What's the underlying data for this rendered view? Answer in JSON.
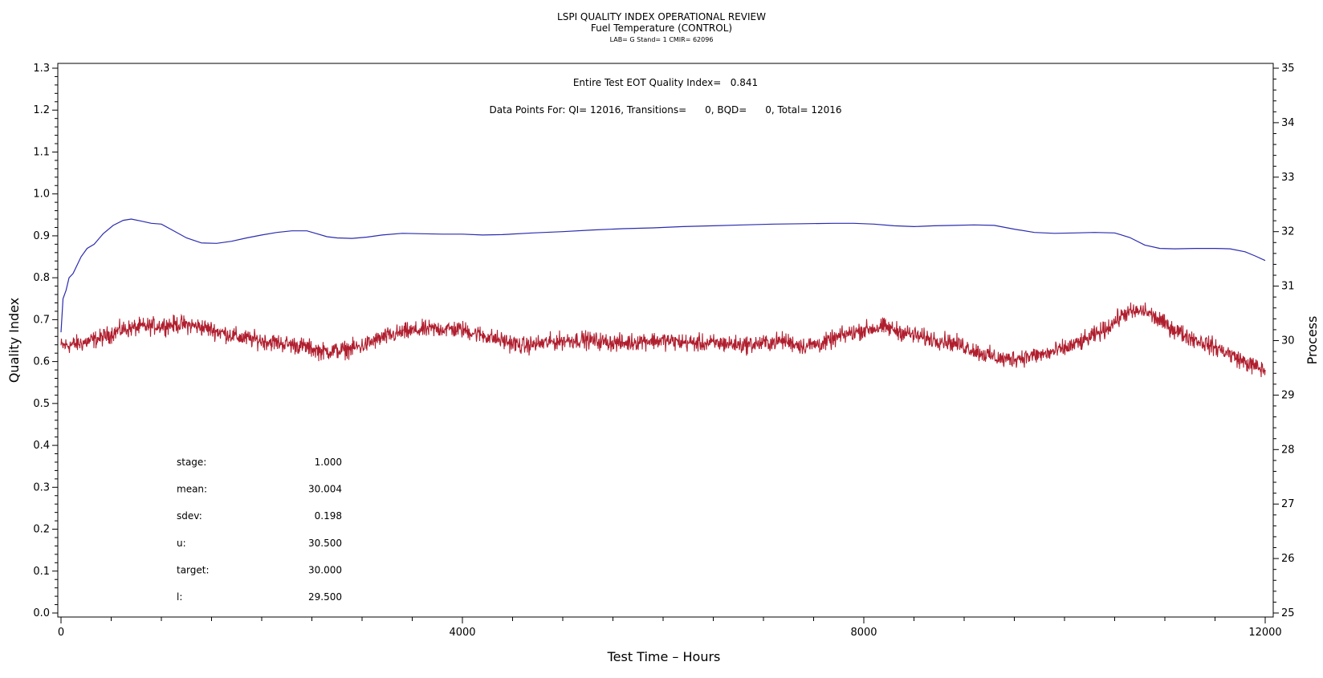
{
  "chart_data": {
    "type": "line",
    "title": "LSPI QUALITY INDEX OPERATIONAL REVIEW",
    "subtitle": "Fuel Temperature (CONTROL)",
    "subtitle2": "LAB= G Stand= 1 CMIR= 62096",
    "xlabel": "Test Time – Hours",
    "ylabel": "Quality Index",
    "y2label": "Process",
    "xlim": [
      0,
      12000
    ],
    "ylim": [
      0,
      1.3
    ],
    "y2lim": [
      25,
      35
    ],
    "x_ticks": [
      "0",
      "4000",
      "8000",
      "12000"
    ],
    "y_ticks": [
      "0.0",
      "0.1",
      "0.2",
      "0.3",
      "0.4",
      "0.5",
      "0.6",
      "0.7",
      "0.8",
      "0.9",
      "1.0",
      "1.1",
      "1.2",
      "1.3"
    ],
    "y2_ticks": [
      "25",
      "26",
      "27",
      "28",
      "29",
      "30",
      "31",
      "32",
      "33",
      "34",
      "35"
    ],
    "annotations": {
      "quality_index": "Entire Test EOT Quality Index=   0.841",
      "data_points": "Data Points For: QI= 12016, Transitions=      0, BQD=      0, Total= 12016"
    },
    "stats": [
      {
        "label": "stage:",
        "value": "1.000"
      },
      {
        "label": "mean:",
        "value": "30.004"
      },
      {
        "label": "sdev:",
        "value": "0.198"
      },
      {
        "label": "u:",
        "value": "30.500"
      },
      {
        "label": "target:",
        "value": "30.000"
      },
      {
        "label": "l:",
        "value": "29.500"
      }
    ],
    "series": [
      {
        "axis": "left",
        "color": "#2b2bb0",
        "x": [
          0,
          20,
          50,
          80,
          120,
          160,
          200,
          260,
          330,
          420,
          520,
          620,
          700,
          800,
          900,
          1000,
          1100,
          1250,
          1400,
          1550,
          1700,
          1850,
          2000,
          2150,
          2300,
          2450,
          2550,
          2650,
          2750,
          2900,
          3050,
          3200,
          3400,
          3600,
          3800,
          4000,
          4200,
          4400,
          4700,
          5000,
          5300,
          5600,
          5900,
          6200,
          6500,
          6800,
          7100,
          7400,
          7700,
          7900,
          8100,
          8300,
          8500,
          8700,
          8900,
          9100,
          9300,
          9500,
          9700,
          9900,
          10100,
          10300,
          10500,
          10650,
          10800,
          10950,
          11100,
          11300,
          11500,
          11650,
          11800,
          11900,
          12000
        ],
        "values": [
          0.67,
          0.75,
          0.77,
          0.8,
          0.81,
          0.83,
          0.85,
          0.87,
          0.88,
          0.905,
          0.925,
          0.937,
          0.94,
          0.935,
          0.93,
          0.928,
          0.915,
          0.895,
          0.883,
          0.882,
          0.887,
          0.895,
          0.902,
          0.908,
          0.912,
          0.912,
          0.905,
          0.898,
          0.895,
          0.894,
          0.897,
          0.902,
          0.906,
          0.905,
          0.904,
          0.904,
          0.902,
          0.903,
          0.907,
          0.91,
          0.914,
          0.917,
          0.919,
          0.922,
          0.924,
          0.926,
          0.928,
          0.929,
          0.93,
          0.93,
          0.928,
          0.924,
          0.922,
          0.924,
          0.925,
          0.926,
          0.925,
          0.916,
          0.908,
          0.906,
          0.907,
          0.908,
          0.907,
          0.896,
          0.878,
          0.87,
          0.869,
          0.87,
          0.87,
          0.869,
          0.862,
          0.852,
          0.841
        ]
      },
      {
        "axis": "right",
        "color": "#b01e2e",
        "x": [
          0,
          200,
          400,
          600,
          800,
          1000,
          1200,
          1400,
          1600,
          1800,
          2000,
          2200,
          2400,
          2600,
          2800,
          3000,
          3200,
          3400,
          3600,
          3800,
          4000,
          4200,
          4400,
          4600,
          4800,
          5000,
          5200,
          5400,
          5600,
          5800,
          6000,
          6200,
          6400,
          6600,
          6800,
          7000,
          7200,
          7400,
          7600,
          7800,
          8000,
          8200,
          8400,
          8600,
          8800,
          9000,
          9200,
          9400,
          9600,
          9800,
          10000,
          10200,
          10400,
          10600,
          10800,
          11000,
          11200,
          11400,
          11600,
          11800,
          12000
        ],
        "values": [
          29.9,
          29.95,
          30.05,
          30.2,
          30.25,
          30.28,
          30.3,
          30.25,
          30.15,
          30.05,
          30.0,
          29.95,
          29.9,
          29.8,
          29.82,
          29.9,
          30.05,
          30.15,
          30.2,
          30.22,
          30.2,
          30.1,
          30.0,
          29.9,
          29.95,
          30.0,
          30.02,
          29.98,
          29.95,
          30.0,
          30.0,
          29.97,
          29.95,
          29.95,
          29.92,
          29.95,
          30.0,
          29.9,
          29.95,
          30.1,
          30.2,
          30.25,
          30.15,
          30.05,
          30.0,
          29.9,
          29.75,
          29.65,
          29.7,
          29.75,
          29.85,
          30.0,
          30.2,
          30.5,
          30.55,
          30.3,
          30.1,
          29.95,
          29.8,
          29.6,
          29.45
        ]
      }
    ]
  }
}
